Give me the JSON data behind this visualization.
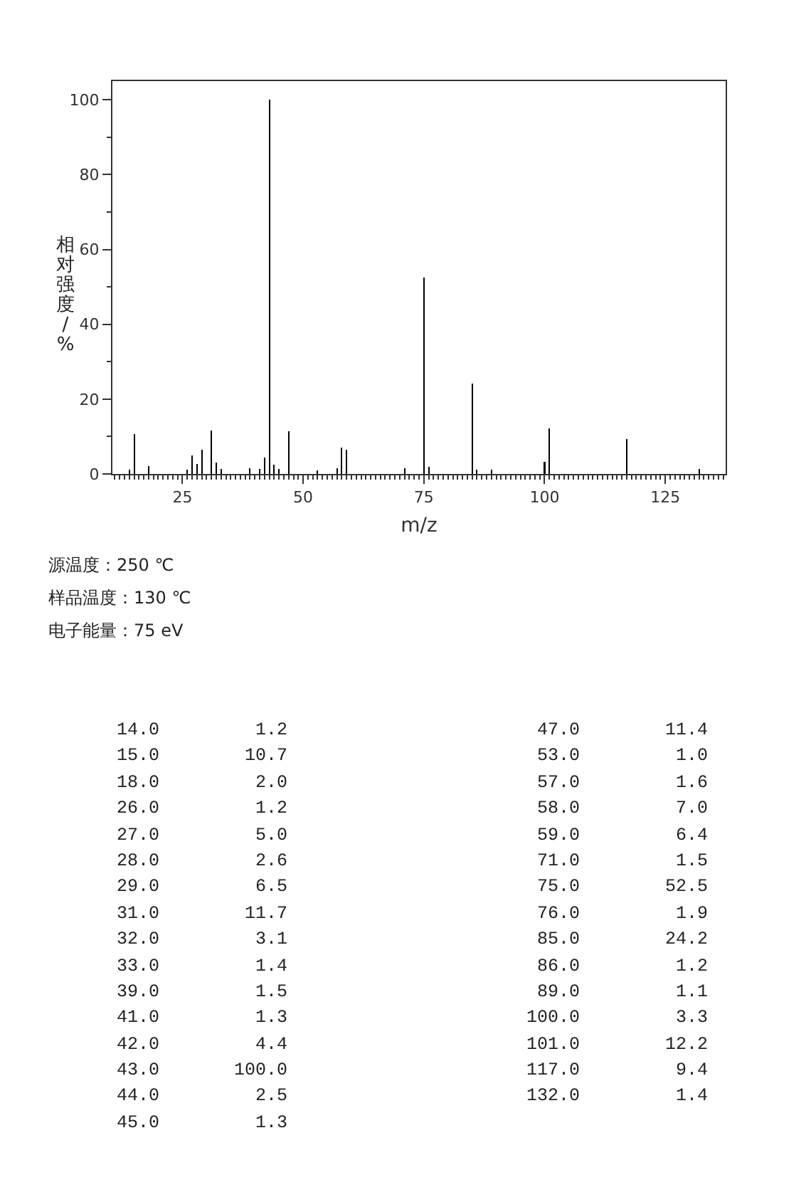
{
  "chart_data": {
    "type": "bar",
    "xlabel": "m/z",
    "ylabel": "相对强度/%",
    "x": [
      14,
      15,
      18,
      26,
      27,
      28,
      29,
      31,
      32,
      33,
      39,
      41,
      42,
      43,
      44,
      45,
      47,
      53,
      57,
      58,
      59,
      71,
      75,
      76,
      85,
      86,
      89,
      100,
      101,
      117,
      132
    ],
    "values": [
      1.2,
      10.7,
      2.0,
      1.2,
      5.0,
      2.6,
      6.5,
      11.7,
      3.1,
      1.4,
      1.5,
      1.3,
      4.4,
      100.0,
      2.5,
      1.3,
      11.4,
      1.0,
      1.6,
      7.0,
      6.4,
      1.5,
      52.5,
      1.9,
      24.2,
      1.2,
      1.1,
      3.3,
      12.2,
      9.4,
      1.4
    ],
    "color": "#000000",
    "xlim": [
      10.5,
      137.5
    ],
    "xticks": [
      25,
      50,
      75,
      100,
      125
    ],
    "ylim": [
      0,
      105
    ],
    "yticks": [
      0,
      20,
      40,
      60,
      80,
      100
    ],
    "grid": false,
    "legend": false,
    "annotations": [
      "源温度：250  ℃",
      "样品温度：130 ℃",
      "电子能量：75 eV",
      "14.0         1.2",
      "15.0        10.7",
      "18.0         2.0",
      "26.0         1.2",
      "27.0         5.0",
      "28.0         2.6",
      "29.0         6.5",
      "31.0        11.7",
      "32.0         3.1",
      "33.0         1.4",
      "39.0         1.5",
      "41.0         1.3",
      "42.0         4.4",
      "43.0       100.0",
      "44.0         2.5",
      "45.0         1.3",
      " 47.0        11.4",
      " 53.0         1.0",
      " 57.0         1.6",
      " 58.0         7.0",
      " 59.0         6.4",
      " 71.0         1.5",
      " 75.0        52.5",
      " 76.0         1.9",
      " 85.0        24.2",
      " 86.0         1.2",
      " 89.0         1.1",
      "100.0         3.3",
      "101.0        12.2",
      "117.0         9.4",
      "132.0         1.4"
    ]
  }
}
